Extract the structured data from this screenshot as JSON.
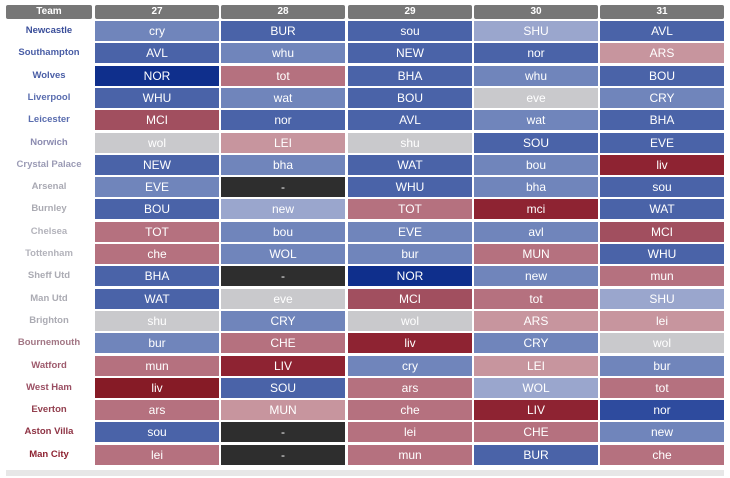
{
  "header": {
    "team_label": "Team",
    "gameweeks": [
      "27",
      "28",
      "29",
      "30",
      "31"
    ]
  },
  "colors": {
    "header_bg": "#777777",
    "blank_cell": "#2e2e2e",
    "palette": {
      "b0": "#0f2f8c",
      "b1": "#2e4b9e",
      "b2": "#4a63a8",
      "b3": "#7085bb",
      "b4": "#9aa6cd",
      "n": "#c9c9cc",
      "r4": "#c7959e",
      "r3": "#b5717f",
      "r2": "#a14f5f",
      "r1": "#8e2332",
      "r0": "#861b26",
      "x": "#2e2e2e"
    }
  },
  "rows": [
    {
      "team": "Newcastle",
      "team_color": "#3a4e9a",
      "fixtures": [
        {
          "t": "cry",
          "c": "b3"
        },
        {
          "t": "BUR",
          "c": "b2"
        },
        {
          "t": "sou",
          "c": "b2"
        },
        {
          "t": "SHU",
          "c": "b4"
        },
        {
          "t": "AVL",
          "c": "b2"
        }
      ]
    },
    {
      "team": "Southampton",
      "team_color": "#4a5ea6",
      "fixtures": [
        {
          "t": "AVL",
          "c": "b2"
        },
        {
          "t": "whu",
          "c": "b3"
        },
        {
          "t": "NEW",
          "c": "b2"
        },
        {
          "t": "nor",
          "c": "b2"
        },
        {
          "t": "ARS",
          "c": "r4"
        }
      ]
    },
    {
      "team": "Wolves",
      "team_color": "#4a5ea6",
      "fixtures": [
        {
          "t": "NOR",
          "c": "b0"
        },
        {
          "t": "tot",
          "c": "r3"
        },
        {
          "t": "BHA",
          "c": "b2"
        },
        {
          "t": "whu",
          "c": "b3"
        },
        {
          "t": "BOU",
          "c": "b2"
        }
      ]
    },
    {
      "team": "Liverpool",
      "team_color": "#5a6daf",
      "fixtures": [
        {
          "t": "WHU",
          "c": "b2"
        },
        {
          "t": "wat",
          "c": "b3"
        },
        {
          "t": "BOU",
          "c": "b2"
        },
        {
          "t": "eve",
          "c": "n"
        },
        {
          "t": "CRY",
          "c": "b3"
        }
      ]
    },
    {
      "team": "Leicester",
      "team_color": "#5a6daf",
      "fixtures": [
        {
          "t": "MCI",
          "c": "r2"
        },
        {
          "t": "nor",
          "c": "b2"
        },
        {
          "t": "AVL",
          "c": "b2"
        },
        {
          "t": "wat",
          "c": "b3"
        },
        {
          "t": "BHA",
          "c": "b2"
        }
      ]
    },
    {
      "team": "Norwich",
      "team_color": "#8b8bb0",
      "fixtures": [
        {
          "t": "wol",
          "c": "n"
        },
        {
          "t": "LEI",
          "c": "r4"
        },
        {
          "t": "shu",
          "c": "n"
        },
        {
          "t": "SOU",
          "c": "b2"
        },
        {
          "t": "EVE",
          "c": "b2"
        }
      ]
    },
    {
      "team": "Crystal Palace",
      "team_color": "#9b9bb5",
      "fixtures": [
        {
          "t": "NEW",
          "c": "b2"
        },
        {
          "t": "bha",
          "c": "b3"
        },
        {
          "t": "WAT",
          "c": "b2"
        },
        {
          "t": "bou",
          "c": "b3"
        },
        {
          "t": "liv",
          "c": "r1"
        }
      ]
    },
    {
      "team": "Arsenal",
      "team_color": "#a9a9b3",
      "fixtures": [
        {
          "t": "EVE",
          "c": "b3"
        },
        {
          "t": "-",
          "c": "x"
        },
        {
          "t": "WHU",
          "c": "b2"
        },
        {
          "t": "bha",
          "c": "b3"
        },
        {
          "t": "sou",
          "c": "b2"
        }
      ]
    },
    {
      "team": "Burnley",
      "team_color": "#ababb3",
      "fixtures": [
        {
          "t": "BOU",
          "c": "b2"
        },
        {
          "t": "new",
          "c": "b4"
        },
        {
          "t": "TOT",
          "c": "r3"
        },
        {
          "t": "mci",
          "c": "r1"
        },
        {
          "t": "WAT",
          "c": "b2"
        }
      ]
    },
    {
      "team": "Chelsea",
      "team_color": "#b3b3bb",
      "fixtures": [
        {
          "t": "TOT",
          "c": "r3"
        },
        {
          "t": "bou",
          "c": "b3"
        },
        {
          "t": "EVE",
          "c": "b3"
        },
        {
          "t": "avl",
          "c": "b3"
        },
        {
          "t": "MCI",
          "c": "r2"
        }
      ]
    },
    {
      "team": "Tottenham",
      "team_color": "#b3b3bb",
      "fixtures": [
        {
          "t": "che",
          "c": "r3"
        },
        {
          "t": "WOL",
          "c": "b3"
        },
        {
          "t": "bur",
          "c": "b3"
        },
        {
          "t": "MUN",
          "c": "r3"
        },
        {
          "t": "WHU",
          "c": "b2"
        }
      ]
    },
    {
      "team": "Sheff Utd",
      "team_color": "#ababb3",
      "fixtures": [
        {
          "t": "BHA",
          "c": "b2"
        },
        {
          "t": "-",
          "c": "x"
        },
        {
          "t": "NOR",
          "c": "b0"
        },
        {
          "t": "new",
          "c": "b3"
        },
        {
          "t": "mun",
          "c": "r3"
        }
      ]
    },
    {
      "team": "Man Utd",
      "team_color": "#ababb3",
      "fixtures": [
        {
          "t": "WAT",
          "c": "b2"
        },
        {
          "t": "eve",
          "c": "n"
        },
        {
          "t": "MCI",
          "c": "r2"
        },
        {
          "t": "tot",
          "c": "r3"
        },
        {
          "t": "SHU",
          "c": "b4"
        }
      ]
    },
    {
      "team": "Brighton",
      "team_color": "#ababb3",
      "fixtures": [
        {
          "t": "shu",
          "c": "n"
        },
        {
          "t": "CRY",
          "c": "b3"
        },
        {
          "t": "wol",
          "c": "n"
        },
        {
          "t": "ARS",
          "c": "r4"
        },
        {
          "t": "lei",
          "c": "r4"
        }
      ]
    },
    {
      "team": "Bournemouth",
      "team_color": "#a27684",
      "fixtures": [
        {
          "t": "bur",
          "c": "b3"
        },
        {
          "t": "CHE",
          "c": "r3"
        },
        {
          "t": "liv",
          "c": "r1"
        },
        {
          "t": "CRY",
          "c": "b3"
        },
        {
          "t": "wol",
          "c": "n"
        }
      ]
    },
    {
      "team": "Watford",
      "team_color": "#9e5a6c",
      "fixtures": [
        {
          "t": "mun",
          "c": "r3"
        },
        {
          "t": "LIV",
          "c": "r1"
        },
        {
          "t": "cry",
          "c": "b3"
        },
        {
          "t": "LEI",
          "c": "r4"
        },
        {
          "t": "bur",
          "c": "b3"
        }
      ]
    },
    {
      "team": "West Ham",
      "team_color": "#9a4e62",
      "fixtures": [
        {
          "t": "liv",
          "c": "r0"
        },
        {
          "t": "SOU",
          "c": "b2"
        },
        {
          "t": "ars",
          "c": "r3"
        },
        {
          "t": "WOL",
          "c": "b4"
        },
        {
          "t": "tot",
          "c": "r3"
        }
      ]
    },
    {
      "team": "Everton",
      "team_color": "#93404f",
      "fixtures": [
        {
          "t": "ars",
          "c": "r3"
        },
        {
          "t": "MUN",
          "c": "r4"
        },
        {
          "t": "che",
          "c": "r3"
        },
        {
          "t": "LIV",
          "c": "r1"
        },
        {
          "t": "nor",
          "c": "b1"
        }
      ]
    },
    {
      "team": "Aston Villa",
      "team_color": "#8e3344",
      "fixtures": [
        {
          "t": "sou",
          "c": "b2"
        },
        {
          "t": "-",
          "c": "x"
        },
        {
          "t": "lei",
          "c": "r3"
        },
        {
          "t": "CHE",
          "c": "r3"
        },
        {
          "t": "new",
          "c": "b3"
        }
      ]
    },
    {
      "team": "Man City",
      "team_color": "#8e2332",
      "fixtures": [
        {
          "t": "lei",
          "c": "r3"
        },
        {
          "t": "-",
          "c": "x"
        },
        {
          "t": "mun",
          "c": "r3"
        },
        {
          "t": "BUR",
          "c": "b2"
        },
        {
          "t": "che",
          "c": "r3"
        }
      ]
    }
  ]
}
